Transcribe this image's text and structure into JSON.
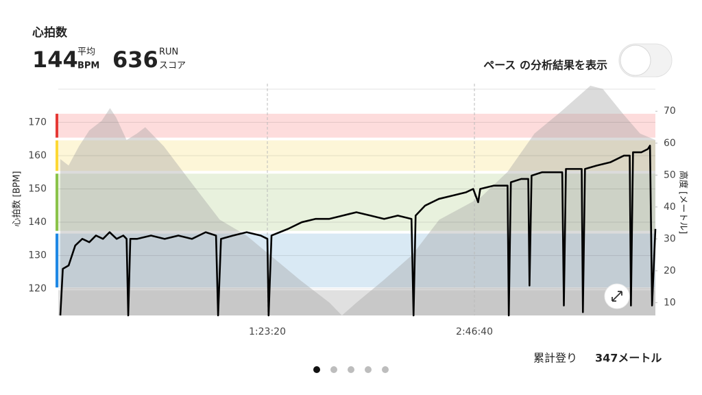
{
  "header": {
    "title": "心拍数",
    "avg_value": 144,
    "avg_label_top": "平均",
    "avg_label_bottom": "BPM",
    "score_value": 636,
    "score_label_top": "RUN",
    "score_label_bottom": "スコア"
  },
  "toggle": {
    "label": "ペース の分析結果を表示",
    "on": false
  },
  "chart_data": {
    "type": "line",
    "ylabel": "心拍数 [BPM]",
    "y2label": "高度 [メートル]",
    "xlim": [
      0,
      14370
    ],
    "xticks": [
      {
        "value": 5000,
        "label": "1:23:20"
      },
      {
        "value": 10000,
        "label": "2:46:40"
      }
    ],
    "ylim": [
      112,
      181
    ],
    "yticks": [
      120,
      130,
      140,
      150,
      160,
      170
    ],
    "y2lim": [
      6,
      78
    ],
    "y2ticks": [
      10,
      20,
      30,
      40,
      50,
      60,
      70
    ],
    "grid": true,
    "zones": [
      {
        "from": 112,
        "to": 120,
        "color": "#e0e0e0"
      },
      {
        "from": 120,
        "to": 137,
        "color": "#d9e9f4",
        "strip": "#1e88e5"
      },
      {
        "from": 137,
        "to": 155,
        "color": "#e8f1dd",
        "strip": "#8bc34a"
      },
      {
        "from": 155,
        "to": 165,
        "color": "#fdf6d8",
        "strip": "#fdd835"
      },
      {
        "from": 165,
        "to": 173,
        "color": "#fddcdc",
        "strip": "#e53935"
      }
    ],
    "series": [
      {
        "type": "area",
        "axis": "y2",
        "color": "#a0a0a0",
        "x": [
          0,
          200,
          450,
          700,
          1000,
          1200,
          1350,
          1600,
          1850,
          2050,
          2500,
          3200,
          3850,
          4500,
          5150,
          5800,
          6500,
          6800,
          7150,
          7800,
          8500,
          9150,
          10150,
          10800,
          11450,
          12100,
          12800,
          13100,
          13600,
          14000,
          14370
        ],
        "values": [
          55,
          53,
          59,
          64,
          67,
          71,
          68,
          61,
          63,
          65,
          59,
          47,
          36,
          31,
          24,
          17,
          10,
          6,
          10,
          17,
          25,
          36,
          43,
          51,
          63,
          70,
          78,
          77,
          69,
          63,
          61
        ]
      },
      {
        "type": "line",
        "color": "#000000",
        "x": [
          0,
          60,
          200,
          360,
          530,
          700,
          860,
          1030,
          1190,
          1360,
          1520,
          1600,
          1640,
          1690,
          1850,
          2190,
          2520,
          2850,
          3180,
          3510,
          3760,
          3810,
          3880,
          4170,
          4500,
          4840,
          5000,
          5030,
          5100,
          5500,
          5830,
          6160,
          6490,
          6820,
          7150,
          7490,
          7820,
          8150,
          8480,
          8530,
          8580,
          8810,
          9140,
          9470,
          9800,
          9970,
          10090,
          10140,
          10470,
          10800,
          10830,
          10880,
          11130,
          11300,
          11330,
          11380,
          11630,
          11960,
          12120,
          12160,
          12210,
          12450,
          12590,
          12620,
          12670,
          12950,
          13280,
          13610,
          13750,
          13780,
          13830,
          14030,
          14190,
          14240,
          14290,
          14370
        ],
        "values": [
          112,
          126,
          127,
          133,
          135,
          134,
          136,
          135,
          137,
          135,
          136,
          135,
          112,
          135,
          135,
          136,
          135,
          136,
          135,
          137,
          136,
          112,
          135,
          136,
          137,
          136,
          135,
          112,
          136,
          138,
          140,
          141,
          141,
          142,
          143,
          142,
          141,
          142,
          141,
          112,
          142,
          145,
          147,
          148,
          149,
          150,
          146,
          150,
          151,
          151,
          112,
          152,
          153,
          153,
          121,
          154,
          155,
          155,
          155,
          115,
          156,
          156,
          156,
          113,
          156,
          157,
          158,
          160,
          160,
          115,
          161,
          161,
          162,
          163,
          115,
          138
        ]
      }
    ]
  },
  "climb": {
    "label": "累計登り",
    "value": "347メートル"
  },
  "pager": {
    "count": 5,
    "active": 0
  }
}
